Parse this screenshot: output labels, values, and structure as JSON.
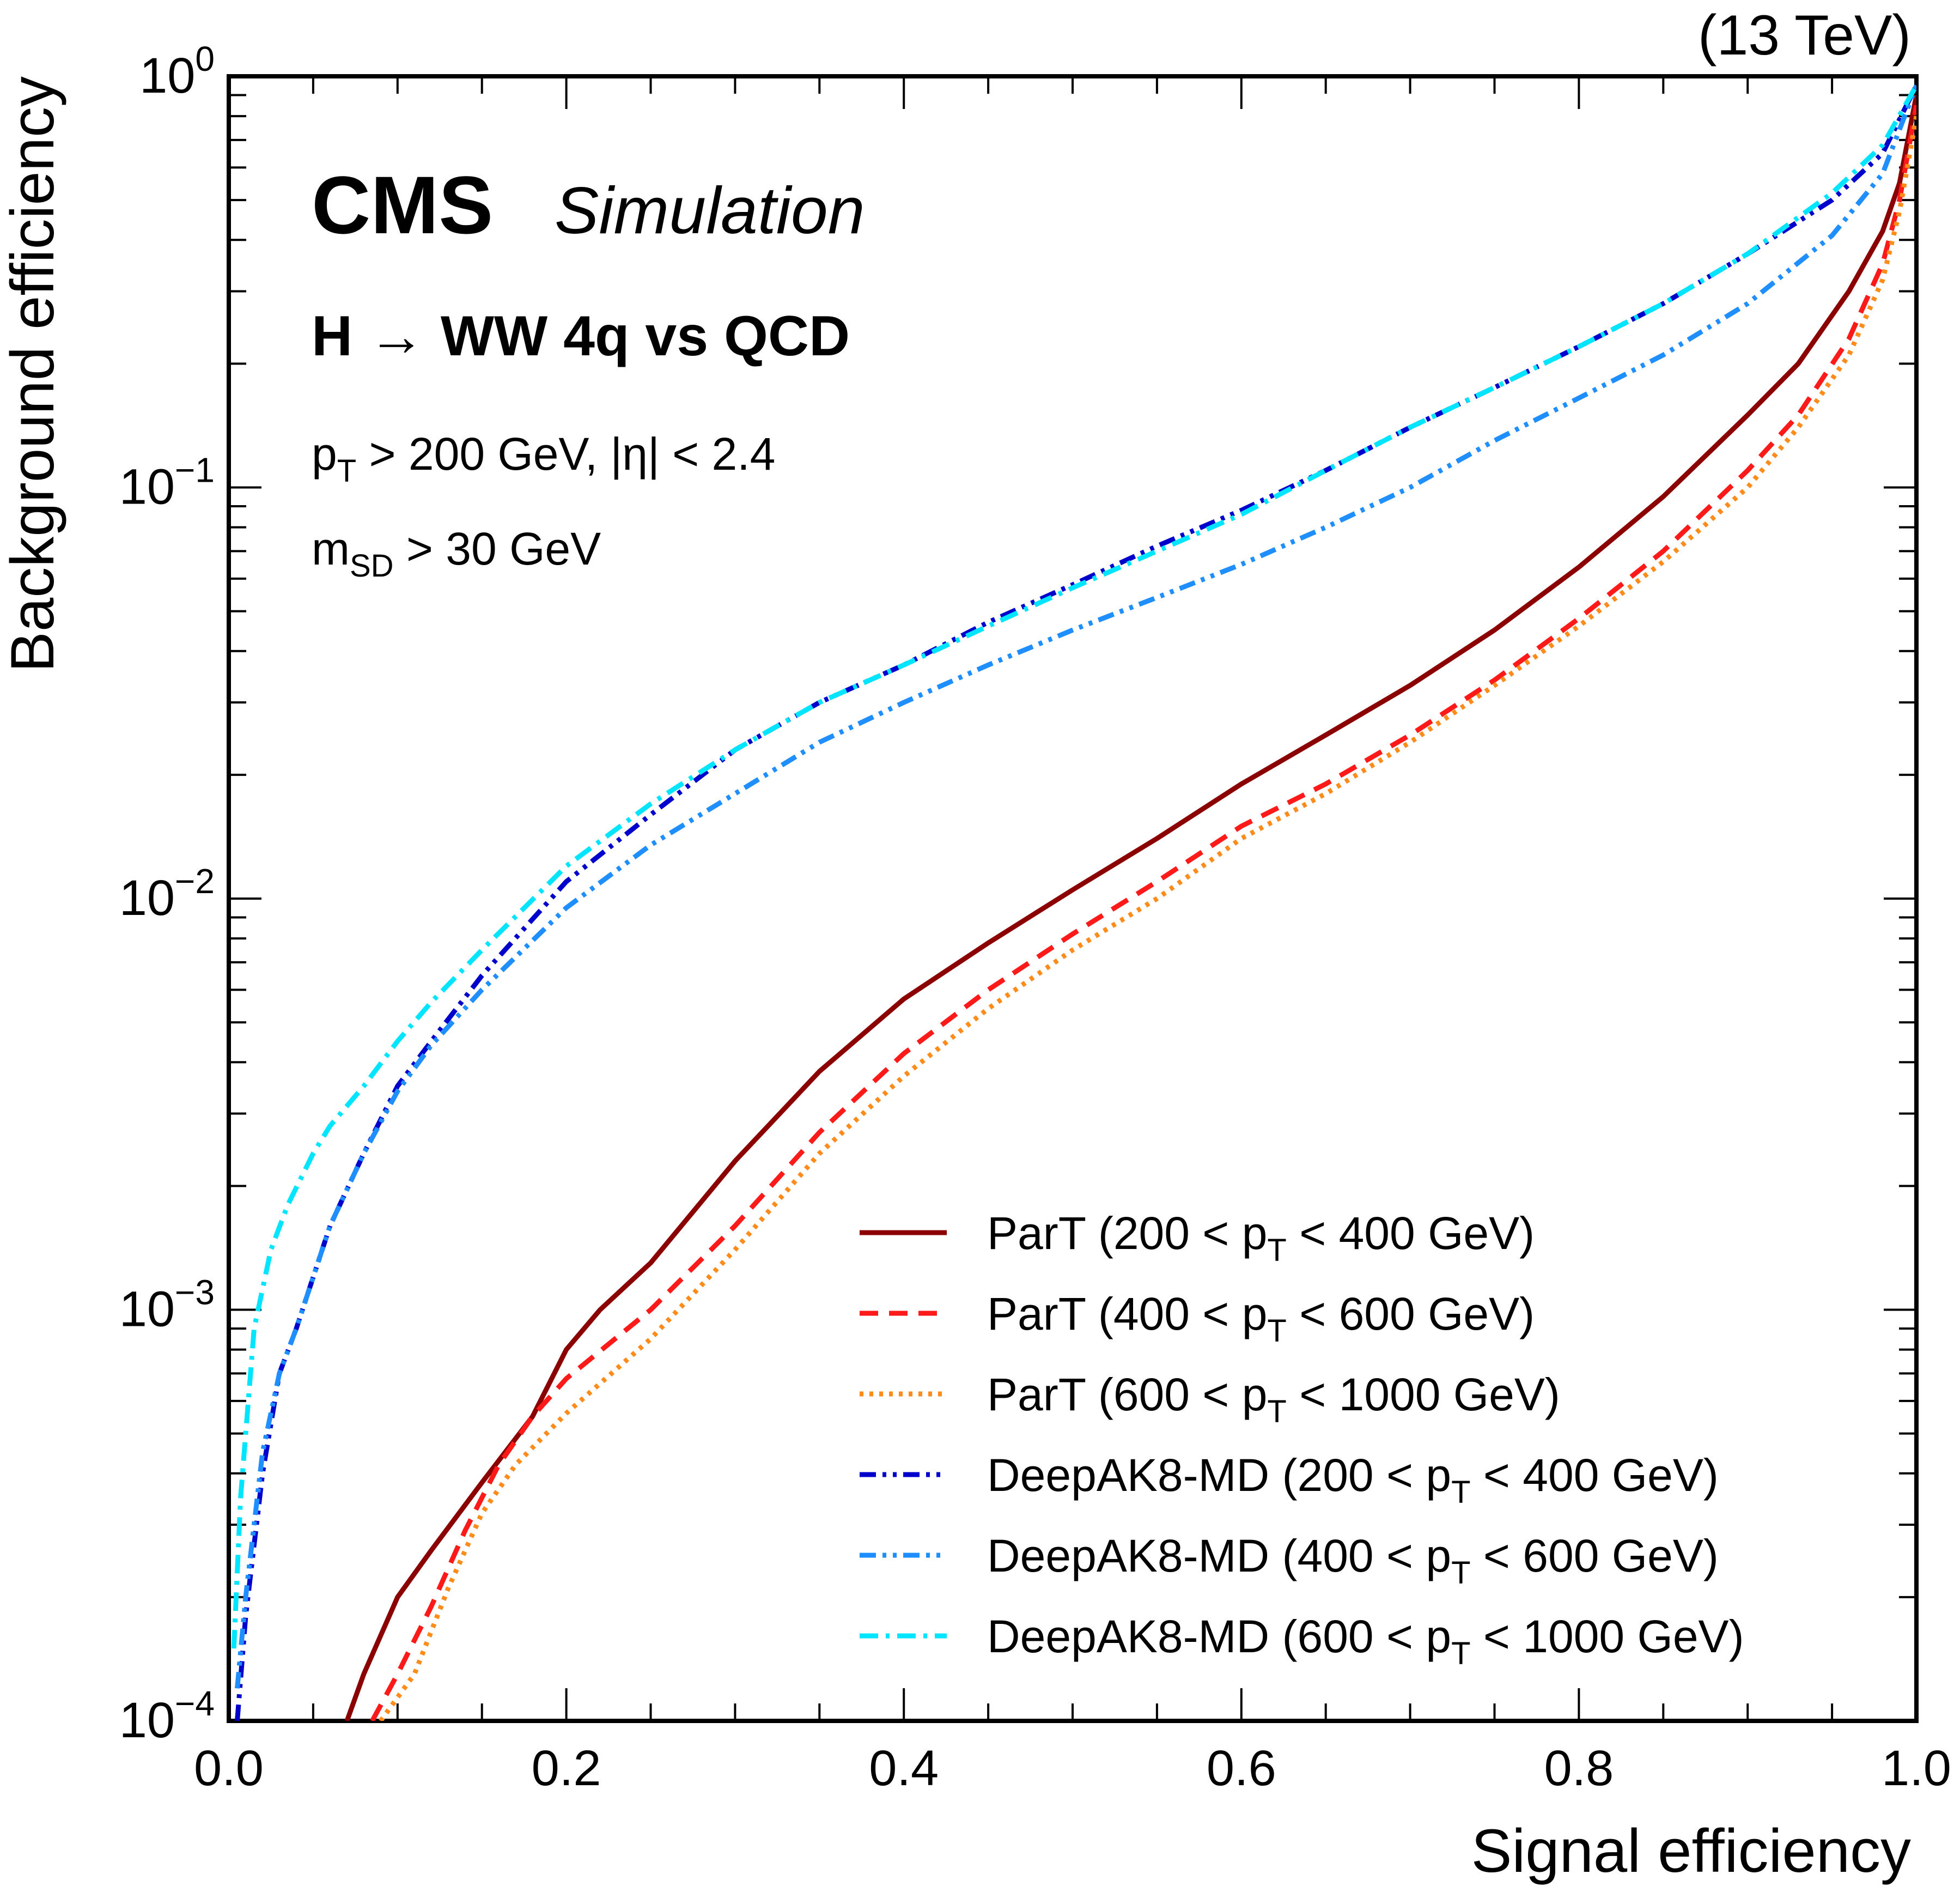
{
  "chart_data": {
    "type": "line",
    "xlabel": "Signal efficiency",
    "ylabel": "Background efficiency",
    "xlim": [
      0.0,
      1.0
    ],
    "ylim": [
      0.0001,
      1.0
    ],
    "yscale": "log",
    "xticks": [
      "0.0",
      "0.2",
      "0.4",
      "0.6",
      "0.8",
      "1.0"
    ],
    "yticks": [
      {
        "base": "10",
        "exp": "0",
        "value": 1.0
      },
      {
        "base": "10",
        "exp": "−1",
        "value": 0.1
      },
      {
        "base": "10",
        "exp": "−2",
        "value": 0.01
      },
      {
        "base": "10",
        "exp": "−3",
        "value": 0.001
      },
      {
        "base": "10",
        "exp": "−4",
        "value": 0.0001
      }
    ],
    "legend_position": "bottom-right",
    "experiment": "CMS",
    "experiment_label": "Simulation",
    "energy": "(13 TeV)",
    "process": "H → WW 4q vs QCD",
    "cut1_pre": "p",
    "cut1_sub": "T",
    "cut1_post": " > 200 GeV,  |η| < 2.4",
    "cut2_pre": "m",
    "cut2_sub": "SD",
    "cut2_post": " > 30 GeV",
    "series": [
      {
        "name": "ParT (200 < pT < 400 GeV)",
        "label_pre": "ParT (200 < p",
        "label_sub": "T",
        "label_post": " < 400 GeV)",
        "color": "#8b0000",
        "dash": "solid",
        "x": [
          0.07,
          0.08,
          0.1,
          0.12,
          0.15,
          0.18,
          0.2,
          0.22,
          0.25,
          0.3,
          0.35,
          0.4,
          0.45,
          0.5,
          0.55,
          0.6,
          0.65,
          0.7,
          0.75,
          0.8,
          0.85,
          0.9,
          0.93,
          0.96,
          0.98,
          0.99,
          1.0
        ],
        "y": [
          0.0001,
          0.00013,
          0.0002,
          0.00026,
          0.00038,
          0.00055,
          0.0008,
          0.001,
          0.0013,
          0.0023,
          0.0038,
          0.0057,
          0.0078,
          0.0105,
          0.014,
          0.019,
          0.025,
          0.033,
          0.045,
          0.064,
          0.095,
          0.15,
          0.2,
          0.3,
          0.42,
          0.55,
          0.9
        ]
      },
      {
        "name": "ParT (400 < pT < 600 GeV)",
        "label_pre": "ParT (400 < p",
        "label_sub": "T",
        "label_post": " < 600 GeV)",
        "color": "#ff1a1a",
        "dash": "dashed",
        "x": [
          0.085,
          0.1,
          0.12,
          0.14,
          0.16,
          0.18,
          0.2,
          0.25,
          0.3,
          0.35,
          0.4,
          0.45,
          0.5,
          0.55,
          0.6,
          0.65,
          0.7,
          0.75,
          0.8,
          0.85,
          0.9,
          0.93,
          0.96,
          0.98,
          0.99,
          1.0
        ],
        "y": [
          0.0001,
          0.00013,
          0.00019,
          0.00029,
          0.00042,
          0.00055,
          0.00068,
          0.001,
          0.0016,
          0.0027,
          0.0042,
          0.006,
          0.0082,
          0.011,
          0.015,
          0.019,
          0.025,
          0.034,
          0.048,
          0.07,
          0.11,
          0.15,
          0.23,
          0.35,
          0.5,
          0.85
        ]
      },
      {
        "name": "ParT (600 < pT < 1000 GeV)",
        "label_pre": "ParT (600 < p",
        "label_sub": "T",
        "label_post": " < 1000 GeV)",
        "color": "#ff8c1a",
        "dash": "dotted",
        "x": [
          0.09,
          0.11,
          0.13,
          0.15,
          0.17,
          0.2,
          0.25,
          0.3,
          0.35,
          0.4,
          0.45,
          0.5,
          0.55,
          0.6,
          0.65,
          0.7,
          0.75,
          0.8,
          0.85,
          0.9,
          0.93,
          0.96,
          0.98,
          0.99,
          1.0
        ],
        "y": [
          0.0001,
          0.00013,
          0.00021,
          0.00032,
          0.00042,
          0.00056,
          0.00085,
          0.0014,
          0.0024,
          0.0037,
          0.0054,
          0.0075,
          0.01,
          0.014,
          0.018,
          0.024,
          0.033,
          0.046,
          0.066,
          0.1,
          0.14,
          0.21,
          0.32,
          0.47,
          0.8
        ]
      },
      {
        "name": "DeepAK8-MD (200 < pT < 400 GeV)",
        "label_pre": "DeepAK8-MD (200 < p",
        "label_sub": "T",
        "label_post": " < 400 GeV)",
        "color": "#0000cc",
        "dash": "dashdotdot",
        "x": [
          0.005,
          0.01,
          0.02,
          0.03,
          0.04,
          0.05,
          0.06,
          0.08,
          0.1,
          0.12,
          0.15,
          0.2,
          0.25,
          0.3,
          0.35,
          0.4,
          0.45,
          0.5,
          0.55,
          0.6,
          0.65,
          0.7,
          0.75,
          0.8,
          0.85,
          0.9,
          0.95,
          0.98,
          1.0
        ],
        "y": [
          0.0001,
          0.00018,
          0.0004,
          0.0007,
          0.0009,
          0.0012,
          0.0016,
          0.0024,
          0.0035,
          0.0045,
          0.0065,
          0.011,
          0.016,
          0.023,
          0.03,
          0.037,
          0.047,
          0.058,
          0.072,
          0.088,
          0.11,
          0.14,
          0.175,
          0.22,
          0.28,
          0.37,
          0.5,
          0.65,
          0.95
        ]
      },
      {
        "name": "DeepAK8-MD (400 < pT < 600 GeV)",
        "label_pre": "DeepAK8-MD (400 < p",
        "label_sub": "T",
        "label_post": " < 600 GeV)",
        "color": "#1f8fff",
        "dash": "dashdotdot",
        "x": [
          0.005,
          0.01,
          0.02,
          0.03,
          0.04,
          0.05,
          0.06,
          0.08,
          0.1,
          0.12,
          0.15,
          0.2,
          0.25,
          0.3,
          0.35,
          0.4,
          0.45,
          0.5,
          0.55,
          0.6,
          0.65,
          0.7,
          0.75,
          0.8,
          0.85,
          0.9,
          0.95,
          0.98,
          1.0
        ],
        "y": [
          0.00012,
          0.0002,
          0.00045,
          0.0007,
          0.0009,
          0.0012,
          0.0016,
          0.0024,
          0.0034,
          0.0044,
          0.006,
          0.0095,
          0.0135,
          0.018,
          0.024,
          0.03,
          0.037,
          0.045,
          0.054,
          0.065,
          0.08,
          0.1,
          0.13,
          0.165,
          0.21,
          0.28,
          0.41,
          0.58,
          0.95
        ]
      },
      {
        "name": "DeepAK8-MD (600 < pT < 1000 GeV)",
        "label_pre": "DeepAK8-MD (600 < p",
        "label_sub": "T",
        "label_post": " < 1000 GeV)",
        "color": "#00e5ff",
        "dash": "dashdot",
        "x": [
          0.003,
          0.007,
          0.015,
          0.025,
          0.035,
          0.05,
          0.06,
          0.08,
          0.1,
          0.12,
          0.15,
          0.2,
          0.25,
          0.3,
          0.35,
          0.4,
          0.45,
          0.5,
          0.55,
          0.6,
          0.65,
          0.7,
          0.75,
          0.8,
          0.85,
          0.9,
          0.95,
          0.98,
          1.0
        ],
        "y": [
          0.00015,
          0.00035,
          0.0009,
          0.0014,
          0.0018,
          0.0024,
          0.0028,
          0.0035,
          0.0045,
          0.0056,
          0.0075,
          0.012,
          0.017,
          0.023,
          0.03,
          0.037,
          0.046,
          0.057,
          0.07,
          0.086,
          0.11,
          0.14,
          0.175,
          0.22,
          0.28,
          0.37,
          0.52,
          0.68,
          0.95
        ]
      }
    ]
  }
}
